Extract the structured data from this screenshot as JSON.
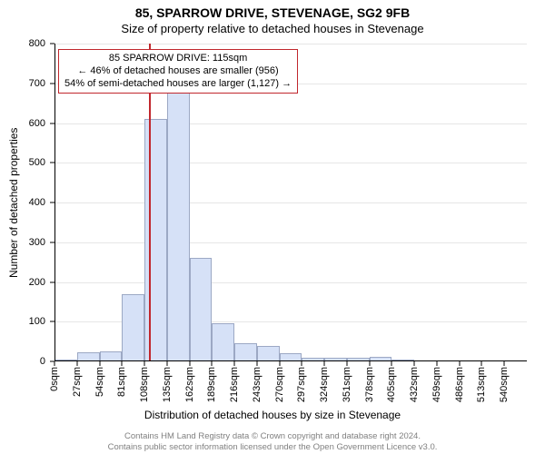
{
  "header": {
    "title": "85, SPARROW DRIVE, STEVENAGE, SG2 9FB",
    "subtitle": "Size of property relative to detached houses in Stevenage"
  },
  "chart": {
    "type": "histogram",
    "background_color": "#ffffff",
    "axis_color": "#000000",
    "grid_color": "#e6e6e6",
    "bar_fill": "#d6e1f7",
    "bar_border": "#9ca8c4",
    "marker_color": "#c1272d",
    "ylabel": "Number of detached properties",
    "xlabel": "Distribution of detached houses by size in Stevenage",
    "label_fontsize": 12,
    "tick_fontsize": 11,
    "ylim": [
      0,
      800
    ],
    "ytick_step": 100,
    "x_categories_step": 27,
    "x_categories_count": 21,
    "x_unit": "sqm",
    "bar_values": [
      5,
      22,
      25,
      170,
      610,
      685,
      260,
      95,
      45,
      40,
      20,
      10,
      10,
      10,
      12,
      5,
      0,
      0,
      0,
      0,
      0
    ],
    "marker_value": 115
  },
  "legend": {
    "line1": "85 SPARROW DRIVE: 115sqm",
    "line2": "← 46% of detached houses are smaller (956)",
    "line3": "54% of semi-detached houses are larger (1,127) →",
    "border_color": "#c1272d"
  },
  "footer": {
    "line1": "Contains HM Land Registry data © Crown copyright and database right 2024.",
    "line2": "Contains public sector information licensed under the Open Government Licence v3.0.",
    "text_color": "#808080"
  }
}
